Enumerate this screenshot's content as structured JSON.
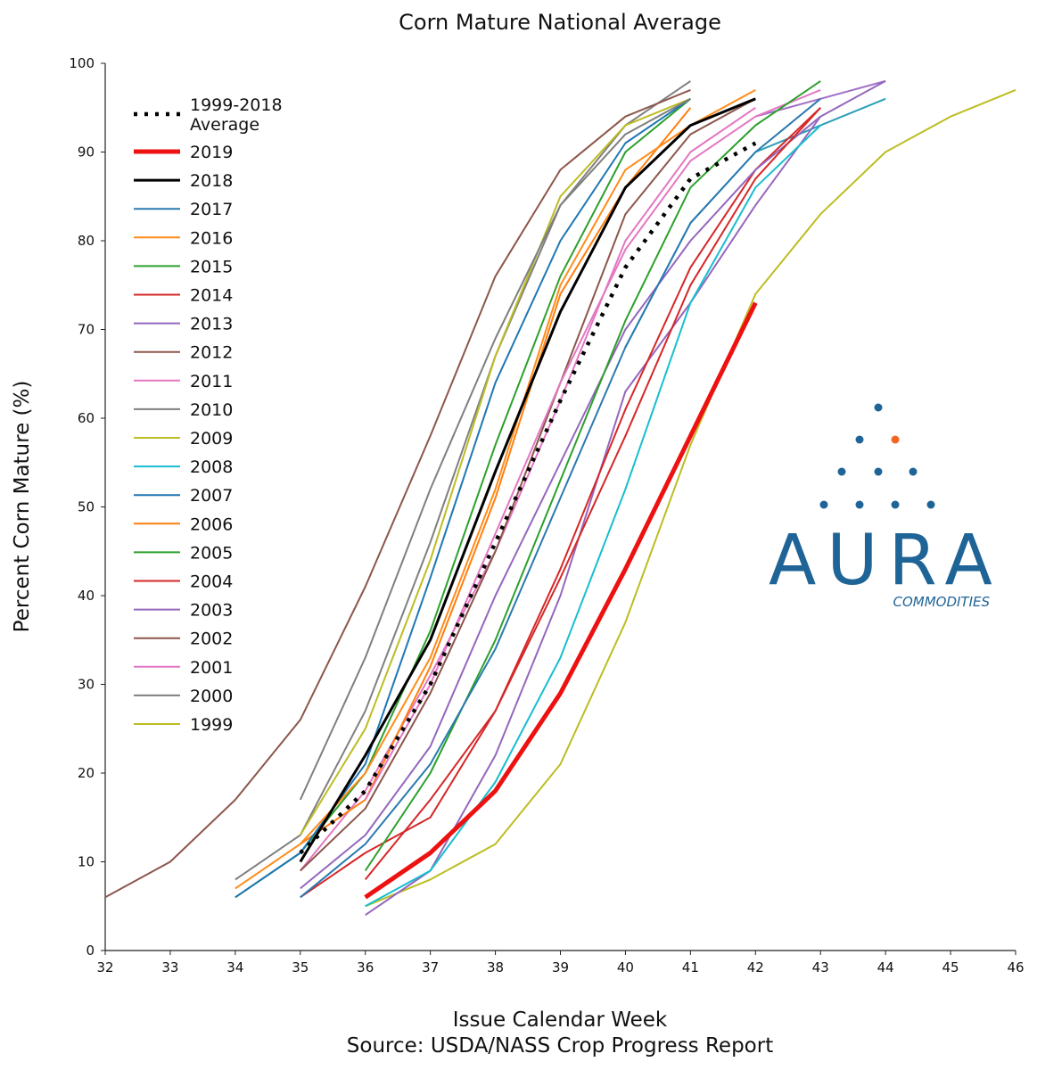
{
  "chart_data": {
    "type": "line",
    "title": "Corn Mature National Average",
    "xlabel": "Issue Calendar Week",
    "source": "Source: USDA/NASS Crop Progress Report",
    "ylabel": "Percent Corn Mature (%)",
    "xlim": [
      32,
      46
    ],
    "ylim": [
      0,
      100
    ],
    "xticks": [
      32,
      33,
      34,
      35,
      36,
      37,
      38,
      39,
      40,
      41,
      42,
      43,
      44,
      45,
      46
    ],
    "yticks": [
      0,
      10,
      20,
      30,
      40,
      50,
      60,
      70,
      80,
      90,
      100
    ],
    "legend_position": "top-left",
    "grid": false,
    "series": [
      {
        "name": "1999-2018\nAverage",
        "color": "#000000",
        "width": 4.5,
        "dash": "4,8",
        "x": [
          35,
          36,
          37,
          38,
          39,
          40,
          41,
          42
        ],
        "y": [
          11,
          18,
          30,
          46,
          62,
          77,
          87,
          91
        ]
      },
      {
        "name": "2019",
        "color": "#ee1111",
        "width": 5,
        "x": [
          36,
          37,
          38,
          39,
          40,
          41,
          42
        ],
        "y": [
          6,
          11,
          18,
          29,
          43,
          58,
          73
        ]
      },
      {
        "name": "2018",
        "color": "#000000",
        "width": 3,
        "x": [
          35,
          36,
          37,
          38,
          39,
          40,
          41,
          42
        ],
        "y": [
          10,
          22,
          35,
          54,
          72,
          86,
          93,
          96
        ]
      },
      {
        "name": "2017",
        "color": "#2a7ab0",
        "width": 2,
        "x": [
          35,
          36,
          37,
          38,
          39,
          40,
          41,
          42,
          43
        ],
        "y": [
          6,
          12,
          21,
          34,
          51,
          68,
          82,
          90,
          96
        ]
      },
      {
        "name": "2016",
        "color": "#ff8c1a",
        "width": 2,
        "x": [
          34,
          35,
          36,
          37,
          38,
          39,
          40,
          41,
          42
        ],
        "y": [
          7,
          12,
          20,
          33,
          52,
          75,
          88,
          93,
          97
        ]
      },
      {
        "name": "2015",
        "color": "#2ca02c",
        "width": 2,
        "x": [
          36,
          37,
          38,
          39,
          40,
          41,
          42,
          43
        ],
        "y": [
          9,
          20,
          35,
          53,
          71,
          86,
          93,
          98
        ]
      },
      {
        "name": "2014",
        "color": "#d62728",
        "width": 2,
        "x": [
          35,
          36,
          37,
          38,
          39,
          40,
          41,
          42,
          43
        ],
        "y": [
          6,
          11,
          15,
          27,
          42,
          58,
          75,
          87,
          95
        ]
      },
      {
        "name": "2013",
        "color": "#9467bd",
        "width": 2,
        "x": [
          35,
          36,
          37,
          38,
          39,
          40,
          41,
          42,
          43
        ],
        "y": [
          7,
          13,
          23,
          40,
          55,
          70,
          80,
          88,
          94
        ]
      },
      {
        "name": "2012",
        "color": "#8c564b",
        "width": 2,
        "x": [
          32,
          33,
          34,
          35,
          36,
          37,
          38,
          39,
          40,
          41
        ],
        "y": [
          6,
          10,
          17,
          26,
          41,
          58,
          76,
          88,
          94,
          97
        ]
      },
      {
        "name": "2011",
        "color": "#e377c2",
        "width": 2,
        "x": [
          36,
          37,
          38,
          39,
          40,
          41,
          42,
          43
        ],
        "y": [
          17,
          30,
          47,
          64,
          79,
          89,
          94,
          97
        ]
      },
      {
        "name": "2010",
        "color": "#7f7f7f",
        "width": 2,
        "x": [
          35,
          36,
          37,
          38,
          39,
          40,
          41
        ],
        "y": [
          17,
          33,
          52,
          69,
          84,
          92,
          96
        ]
      },
      {
        "name": "2009",
        "color": "#bcbd22",
        "width": 2,
        "x": [
          35,
          36,
          37,
          38,
          39,
          40,
          41
        ],
        "y": [
          13,
          25,
          44,
          67,
          85,
          93,
          96
        ]
      },
      {
        "name": "2008",
        "color": "#17becf",
        "width": 2,
        "x": [
          36,
          37,
          38,
          39,
          40,
          41,
          42,
          43
        ],
        "y": [
          5,
          9,
          19,
          33,
          52,
          73,
          86,
          93
        ]
      },
      {
        "name": "2007",
        "color": "#1f77b4",
        "width": 2,
        "x": [
          34,
          35,
          36,
          37,
          38,
          39,
          40,
          41
        ],
        "y": [
          6,
          11,
          21,
          42,
          64,
          80,
          91,
          96
        ]
      },
      {
        "name": "2006",
        "color": "#ff7f0e",
        "width": 2,
        "x": [
          35,
          36,
          37,
          38,
          39,
          40,
          41
        ],
        "y": [
          12,
          17,
          32,
          51,
          74,
          86,
          95
        ]
      },
      {
        "name": "2005",
        "color": "#2ca02c",
        "width": 2,
        "x": [
          34,
          35,
          36,
          37,
          38,
          39,
          40,
          41
        ],
        "y": [
          6,
          11,
          20,
          36,
          57,
          76,
          90,
          96
        ]
      },
      {
        "name": "2004",
        "color": "#d62728",
        "width": 2,
        "x": [
          36,
          37,
          38,
          39,
          40,
          41,
          42,
          43
        ],
        "y": [
          8,
          17,
          27,
          43,
          61,
          77,
          88,
          95
        ]
      },
      {
        "name": "2003",
        "color": "#9467bd",
        "width": 2,
        "x": [
          36,
          37,
          38,
          39,
          40,
          41,
          42,
          43,
          44
        ],
        "y": [
          4,
          9,
          22,
          40,
          63,
          73,
          84,
          94,
          98
        ]
      },
      {
        "name": "2002",
        "color": "#8c564b",
        "width": 2,
        "x": [
          35,
          36,
          37,
          38,
          39,
          40,
          41,
          42
        ],
        "y": [
          9,
          16,
          29,
          45,
          64,
          83,
          92,
          96
        ]
      },
      {
        "name": "2001",
        "color": "#e377c2",
        "width": 2,
        "x": [
          35,
          36,
          37,
          38,
          39,
          40,
          41,
          42
        ],
        "y": [
          9,
          18,
          31,
          45,
          62,
          80,
          90,
          95
        ]
      },
      {
        "name": "2000",
        "color": "#7f7f7f",
        "width": 2,
        "x": [
          34,
          35,
          36,
          37,
          38,
          39,
          40,
          41
        ],
        "y": [
          8,
          13,
          27,
          46,
          67,
          84,
          93,
          98
        ]
      },
      {
        "name": "1999",
        "color": "#bcbd22",
        "width": 2,
        "x": [
          36,
          37,
          38,
          39,
          40,
          41,
          42,
          43,
          44,
          45,
          46
        ],
        "y": [
          5,
          8,
          12,
          21,
          37,
          57,
          74,
          83,
          90,
          94,
          97
        ]
      }
    ],
    "extra_series": [
      {
        "color": "#2a9fb8",
        "width": 2,
        "x": [
          40,
          41,
          42,
          43,
          44
        ],
        "y": [
          68,
          82,
          90,
          93,
          96
        ]
      },
      {
        "color": "#a070c8",
        "width": 2,
        "x": [
          42,
          43,
          44
        ],
        "y": [
          94,
          96,
          98
        ]
      }
    ]
  },
  "logo": {
    "main": "AURA",
    "sub": "COMMODITIES",
    "dot_color": "#1f6496",
    "accent_color": "#f26522"
  }
}
